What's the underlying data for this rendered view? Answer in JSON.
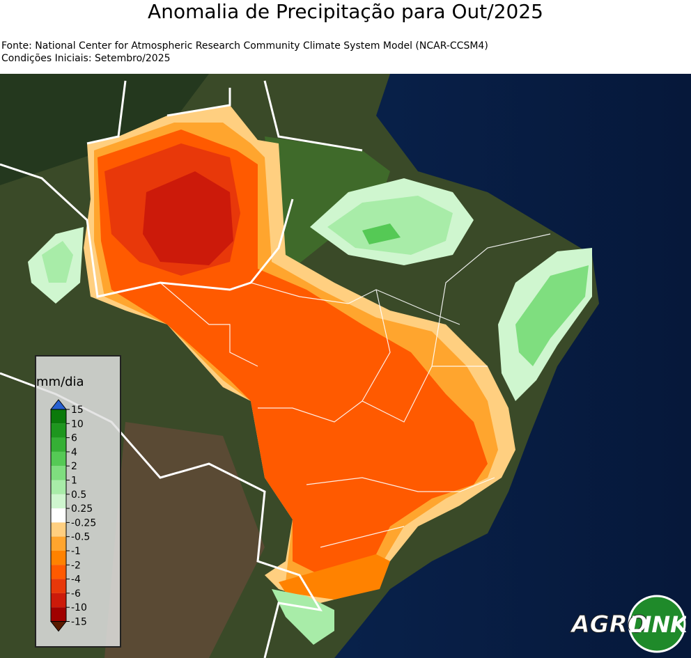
{
  "header": {
    "title": "Anomalia de Precipitação para Out/2025",
    "source": "Fonte: National Center for Atmospheric Research Community Climate System Model (NCAR-CCSM4)",
    "initial_conditions": "Condições Iniciais: Setembro/2025"
  },
  "legend": {
    "unit": "mm/dia",
    "levels": [
      15,
      10,
      6,
      4,
      2,
      1,
      0.5,
      0.25,
      -0.25,
      -0.5,
      -1,
      -2,
      -4,
      -6,
      -10,
      -15
    ],
    "colors": [
      "#0b7a0b",
      "#1e961e",
      "#35b035",
      "#55c955",
      "#7fde7f",
      "#a8eca8",
      "#cff6cf",
      "#ffffff",
      "#ffcf80",
      "#ffa52e",
      "#ff8200",
      "#ff5a00",
      "#e8380a",
      "#cc1a0a",
      "#a00000"
    ],
    "arrow_colors": [
      "#2860d0",
      "#5a1a00"
    ]
  },
  "logo": {
    "left": "AGRO",
    "right": "LINK"
  }
}
